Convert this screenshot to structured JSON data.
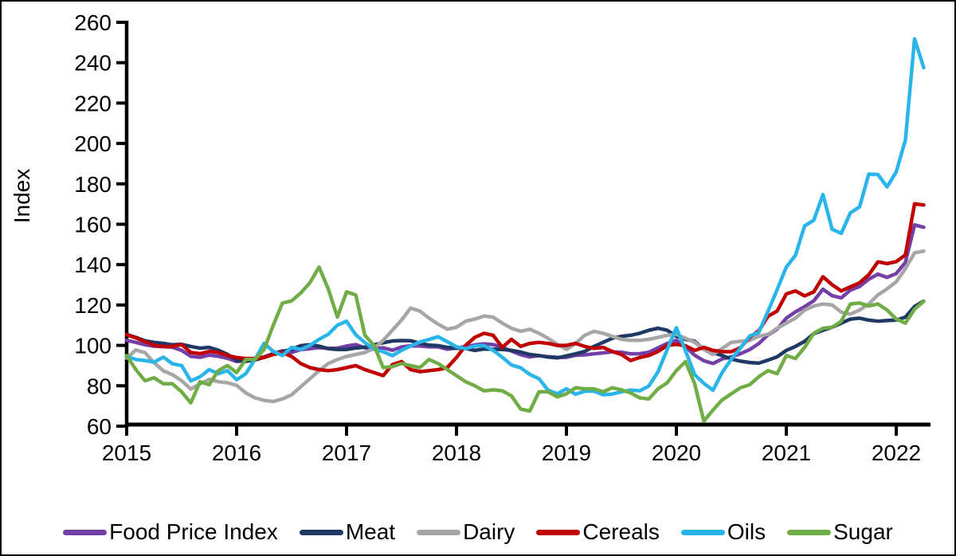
{
  "chart_data": {
    "type": "line",
    "title": "",
    "ylabel": "Index",
    "ylim": [
      60,
      260
    ],
    "ytick_step": 20,
    "y_ticks": [
      260,
      240,
      220,
      200,
      180,
      160,
      140,
      120,
      100,
      80,
      60
    ],
    "x_ticks": [
      "2015",
      "2016",
      "2017",
      "2018",
      "2019",
      "2020",
      "2021",
      "2022"
    ],
    "x_frequency": "monthly",
    "x_start": "2015-01",
    "x_end": "2022-04",
    "grid": false,
    "legend_position": "bottom",
    "axis_color": "#000000",
    "background_color": "#ffffff",
    "series": [
      {
        "name": "Food Price Index",
        "color": "#7440A8",
        "values": [
          102.5,
          101.5,
          100.3,
          99.6,
          99.4,
          99.1,
          97.5,
          94.6,
          94.1,
          95.2,
          94.6,
          93.6,
          92.0,
          92.5,
          93.6,
          94.3,
          95.9,
          97.3,
          96.5,
          97.9,
          98.4,
          98.9,
          98.5,
          98.6,
          99.7,
          100.4,
          98.8,
          98.4,
          98.8,
          97.6,
          99.2,
          99.8,
          99.7,
          99.3,
          99.3,
          98.1,
          98.7,
          99.4,
          100.2,
          100.8,
          100.4,
          99.1,
          97.2,
          95.4,
          94.3,
          94.9,
          94.4,
          94.1,
          94.1,
          95.1,
          95.3,
          95.8,
          96.3,
          96.8,
          96.6,
          95.8,
          95.9,
          96.6,
          98.8,
          101.0,
          102.5,
          99.4,
          95.1,
          92.4,
          91.0,
          93.3,
          94.3,
          95.9,
          97.9,
          100.9,
          105.2,
          108.0,
          113.5,
          116.6,
          119.2,
          122.1,
          127.8,
          124.6,
          123.5,
          127.4,
          129.2,
          132.8,
          135.3,
          133.7,
          135.6,
          141.1,
          159.7,
          158.5
        ]
      },
      {
        "name": "Meat",
        "color": "#1F3864",
        "values": [
          105.4,
          104.0,
          102.3,
          101.5,
          101.0,
          100.3,
          100.5,
          99.5,
          98.6,
          99.0,
          97.6,
          95.6,
          92.6,
          92.1,
          92.8,
          94.1,
          95.9,
          97.0,
          98.0,
          99.9,
          100.3,
          99.6,
          98.4,
          98.0,
          98.0,
          98.7,
          99.1,
          100.3,
          101.3,
          102.2,
          102.4,
          102.3,
          101.1,
          100.1,
          99.9,
          99.0,
          98.6,
          98.5,
          97.5,
          98.2,
          98.1,
          98.0,
          97.5,
          96.7,
          95.5,
          95.0,
          94.2,
          93.8,
          94.8,
          95.8,
          97.0,
          99.5,
          101.5,
          103.5,
          104.5,
          105.0,
          106.0,
          107.5,
          108.5,
          107.5,
          104.5,
          103.0,
          102.0,
          98.0,
          96.4,
          95.0,
          93.2,
          92.2,
          91.5,
          91.2,
          92.7,
          94.3,
          97.5,
          99.5,
          102.0,
          105.8,
          107.5,
          109.0,
          111.0,
          113.0,
          113.5,
          112.5,
          112.0,
          112.3,
          112.5,
          114.0,
          119.3,
          121.9
        ]
      },
      {
        "name": "Dairy",
        "color": "#A6A6A6",
        "values": [
          93.7,
          97.7,
          96.4,
          91.4,
          87.4,
          85.5,
          82.5,
          78.4,
          80.9,
          83.2,
          82.0,
          81.5,
          80.2,
          76.5,
          74.0,
          72.8,
          72.2,
          73.5,
          75.5,
          79.5,
          83.5,
          87.5,
          91.0,
          93.0,
          94.5,
          95.5,
          96.5,
          98.5,
          102.5,
          107.5,
          112.5,
          118.5,
          117.0,
          113.5,
          110.5,
          108.0,
          109.0,
          112.0,
          113.0,
          114.5,
          114.0,
          111.0,
          108.5,
          107.0,
          108.0,
          106.0,
          103.5,
          100.5,
          98.0,
          101.0,
          105.0,
          107.0,
          106.0,
          104.5,
          103.0,
          102.5,
          102.5,
          103.0,
          104.0,
          105.0,
          105.5,
          103.5,
          101.5,
          98.0,
          95.5,
          98.5,
          101.5,
          102.0,
          102.5,
          104.5,
          105.5,
          108.5,
          111.0,
          113.5,
          117.5,
          119.5,
          120.5,
          120.0,
          116.5,
          115.5,
          117.5,
          120.5,
          125.0,
          128.0,
          131.5,
          138.0,
          145.8,
          146.7
        ]
      },
      {
        "name": "Cereals",
        "color": "#C00000",
        "values": [
          105.3,
          103.7,
          101.9,
          100.0,
          99.5,
          99.4,
          100.4,
          96.5,
          95.9,
          97.0,
          96.5,
          95.0,
          94.0,
          93.5,
          93.5,
          94.0,
          95.5,
          96.5,
          94.5,
          91.0,
          89.0,
          88.0,
          87.5,
          88.0,
          89.0,
          90.0,
          88.0,
          86.5,
          85.0,
          90.5,
          92.0,
          88.0,
          87.0,
          87.5,
          88.0,
          89.0,
          94.0,
          100.0,
          104.0,
          106.0,
          105.0,
          99.0,
          103.0,
          99.5,
          101.0,
          101.5,
          101.0,
          100.0,
          100.0,
          101.0,
          99.5,
          98.5,
          99.0,
          97.0,
          95.5,
          92.5,
          94.0,
          95.0,
          97.0,
          100.0,
          100.5,
          99.8,
          97.5,
          99.0,
          97.5,
          96.9,
          96.9,
          98.9,
          104.0,
          107.2,
          114.4,
          117.0,
          125.5,
          127.0,
          124.5,
          126.5,
          134.0,
          130.0,
          127.0,
          129.0,
          131.0,
          135.0,
          141.4,
          140.5,
          141.5,
          144.8,
          170.1,
          169.5
        ]
      },
      {
        "name": "Oils",
        "color": "#29B5EA",
        "values": [
          94.5,
          93.0,
          92.5,
          91.7,
          94.2,
          90.9,
          90.0,
          82.4,
          84.4,
          88.0,
          86.0,
          87.5,
          83.0,
          86.0,
          93.0,
          101.0,
          97.0,
          95.0,
          99.0,
          98.0,
          100.0,
          103.0,
          105.5,
          110.0,
          112.0,
          105.3,
          101.4,
          98.1,
          96.9,
          94.9,
          97.5,
          99.7,
          101.7,
          102.9,
          104.3,
          101.8,
          99.3,
          98.4,
          99.7,
          99.9,
          97.6,
          94.1,
          90.3,
          88.9,
          85.6,
          83.5,
          77.8,
          76.0,
          78.5,
          75.8,
          77.3,
          77.4,
          75.6,
          75.9,
          77.0,
          77.9,
          77.5,
          79.9,
          87.0,
          98.0,
          108.7,
          97.3,
          85.5,
          81.2,
          77.8,
          86.6,
          93.2,
          98.7,
          104.6,
          106.4,
          116.9,
          127.6,
          138.8,
          144.6,
          159.2,
          162.0,
          174.7,
          157.5,
          155.5,
          165.7,
          168.6,
          184.8,
          184.6,
          178.5,
          185.9,
          201.7,
          251.8,
          237.5
        ]
      },
      {
        "name": "Sugar",
        "color": "#70AD47",
        "values": [
          95.0,
          88.0,
          82.5,
          84.0,
          81.0,
          81.0,
          77.0,
          71.5,
          82.0,
          80.5,
          87.5,
          90.0,
          86.5,
          93.0,
          93.0,
          98.0,
          110.0,
          121.0,
          122.0,
          126.0,
          131.0,
          138.8,
          128.0,
          114.0,
          126.5,
          125.0,
          105.0,
          100.0,
          89.0,
          89.5,
          91.0,
          90.0,
          89.0,
          93.0,
          91.0,
          88.0,
          85.0,
          82.0,
          80.0,
          77.5,
          78.0,
          77.5,
          75.0,
          68.5,
          67.5,
          77.0,
          77.0,
          74.5,
          76.0,
          79.0,
          78.5,
          78.5,
          77.0,
          79.0,
          78.0,
          76.5,
          74.0,
          73.5,
          78.5,
          81.5,
          87.5,
          92.0,
          81.0,
          62.5,
          68.0,
          73.0,
          76.0,
          79.0,
          80.5,
          84.5,
          87.5,
          86.0,
          95.0,
          93.5,
          99.0,
          106.0,
          108.5,
          109.0,
          112.0,
          120.5,
          121.0,
          119.5,
          120.5,
          117.5,
          113.0,
          111.0,
          117.9,
          121.8
        ]
      }
    ]
  }
}
